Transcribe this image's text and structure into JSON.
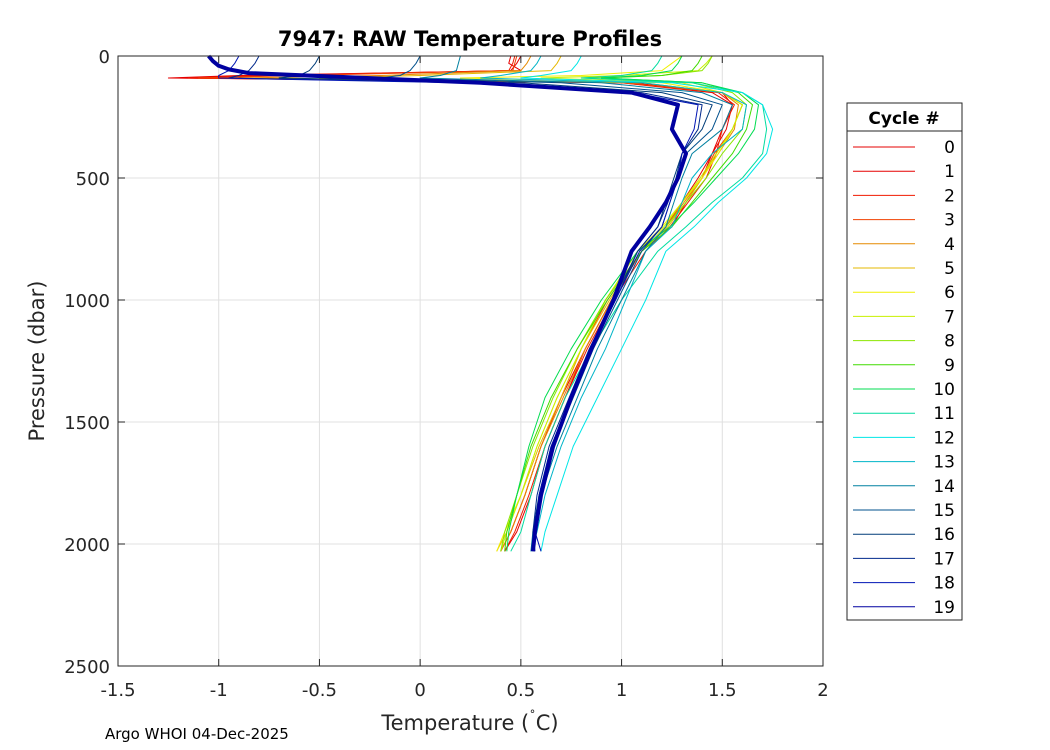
{
  "chart_data": {
    "type": "line",
    "title": "7947: RAW Temperature Profiles",
    "xlabel": "Temperature (",
    "xlabel_degree": "˚",
    "xlabel_unit": "C)",
    "ylabel": "Pressure (dbar)",
    "xlim": [
      -1.5,
      2
    ],
    "ylim": [
      0,
      2500
    ],
    "y_reversed": true,
    "grid": true,
    "x_ticks": [
      -1.5,
      -1,
      -0.5,
      0,
      0.5,
      1,
      1.5,
      2
    ],
    "x_tick_labels": [
      "-1.5",
      "-1",
      "-0.5",
      "0",
      "0.5",
      "1",
      "1.5",
      "2"
    ],
    "y_ticks": [
      0,
      500,
      1000,
      1500,
      2000,
      2500
    ],
    "y_tick_labels": [
      "0",
      "500",
      "1000",
      "1500",
      "2000",
      "2500"
    ],
    "legend": {
      "title": "Cycle #",
      "position": "outside-right",
      "entries": [
        "0",
        "1",
        "2",
        "3",
        "4",
        "5",
        "6",
        "7",
        "8",
        "9",
        "10",
        "11",
        "12",
        "13",
        "14",
        "15",
        "16",
        "17",
        "18",
        "19"
      ]
    },
    "colors": [
      "#e60000",
      "#e60000",
      "#f01a00",
      "#f04000",
      "#e68a00",
      "#e6b800",
      "#f0f000",
      "#c8f000",
      "#8ce600",
      "#40dc00",
      "#00dc50",
      "#00dca0",
      "#00e6e6",
      "#00b4c8",
      "#0080a0",
      "#00508c",
      "#003c78",
      "#00288c",
      "#0014b4",
      "#0000a0"
    ],
    "highlight_series": "19",
    "series": [
      {
        "name": "0",
        "x": [
          0.45,
          0.44,
          0.5,
          -0.9,
          -1.25,
          1.0,
          1.45,
          1.55,
          1.5,
          1.45,
          1.4,
          1.32,
          1.25,
          1.1,
          0.95,
          0.82,
          0.72,
          0.62,
          0.55,
          0.48,
          0.42
        ],
        "y": [
          0,
          30,
          60,
          80,
          90,
          110,
          150,
          200,
          300,
          400,
          500,
          600,
          700,
          800,
          1000,
          1200,
          1400,
          1600,
          1800,
          1950,
          2030
        ]
      },
      {
        "name": "1",
        "x": [
          0.5,
          0.48,
          0.45,
          -0.8,
          -1.2,
          1.05,
          1.5,
          1.55,
          1.52,
          1.45,
          1.38,
          1.3,
          1.22,
          1.1,
          0.95,
          0.82,
          0.7,
          0.6,
          0.52,
          0.45,
          0.4
        ],
        "y": [
          0,
          30,
          60,
          80,
          90,
          110,
          150,
          200,
          300,
          400,
          500,
          600,
          700,
          800,
          1000,
          1200,
          1400,
          1600,
          1800,
          1950,
          2030
        ]
      },
      {
        "name": "2",
        "x": [
          0.47,
          0.46,
          0.44,
          -0.7,
          -1.15,
          1.0,
          1.48,
          1.56,
          1.5,
          1.47,
          1.42,
          1.33,
          1.24,
          1.12,
          0.96,
          0.83,
          0.72,
          0.62,
          0.54,
          0.47,
          0.42
        ],
        "y": [
          0,
          30,
          60,
          80,
          90,
          110,
          150,
          200,
          300,
          400,
          500,
          600,
          700,
          800,
          1000,
          1200,
          1400,
          1600,
          1800,
          1950,
          2030
        ]
      },
      {
        "name": "3",
        "x": [
          0.48,
          0.47,
          0.46,
          -0.6,
          -1.1,
          1.02,
          1.5,
          1.6,
          1.55,
          1.46,
          1.4,
          1.3,
          1.22,
          1.1,
          0.93,
          0.8,
          0.7,
          0.6,
          0.52,
          0.45,
          0.4
        ],
        "y": [
          0,
          30,
          60,
          80,
          90,
          110,
          150,
          200,
          300,
          400,
          500,
          600,
          700,
          800,
          1000,
          1200,
          1400,
          1600,
          1800,
          1950,
          2030
        ]
      },
      {
        "name": "4",
        "x": [
          0.55,
          0.53,
          0.5,
          -0.2,
          -0.9,
          1.1,
          1.5,
          1.58,
          1.56,
          1.48,
          1.4,
          1.31,
          1.22,
          1.1,
          0.95,
          0.82,
          0.71,
          0.6,
          0.52,
          0.45,
          0.4
        ],
        "y": [
          0,
          30,
          60,
          80,
          90,
          110,
          150,
          200,
          300,
          400,
          500,
          600,
          700,
          800,
          1000,
          1200,
          1400,
          1600,
          1800,
          1950,
          2030
        ]
      },
      {
        "name": "5",
        "x": [
          0.7,
          0.68,
          0.65,
          0.0,
          -0.5,
          1.1,
          1.5,
          1.6,
          1.55,
          1.47,
          1.4,
          1.32,
          1.23,
          1.1,
          0.94,
          0.8,
          0.7,
          0.59,
          0.5,
          0.43,
          0.38
        ],
        "y": [
          0,
          30,
          60,
          80,
          90,
          110,
          150,
          200,
          300,
          400,
          500,
          600,
          700,
          800,
          1000,
          1200,
          1400,
          1600,
          1800,
          1950,
          2030
        ]
      },
      {
        "name": "6",
        "x": [
          1.3,
          1.25,
          1.2,
          0.8,
          0.2,
          1.2,
          1.5,
          1.6,
          1.55,
          1.48,
          1.4,
          1.3,
          1.2,
          1.08,
          0.92,
          0.8,
          0.68,
          0.58,
          0.5,
          0.42,
          0.38
        ],
        "y": [
          0,
          30,
          60,
          80,
          90,
          110,
          150,
          200,
          300,
          400,
          500,
          600,
          700,
          800,
          1000,
          1200,
          1400,
          1600,
          1800,
          1950,
          2030
        ]
      },
      {
        "name": "7",
        "x": [
          1.45,
          1.42,
          1.38,
          1.0,
          0.6,
          1.3,
          1.5,
          1.6,
          1.55,
          1.47,
          1.39,
          1.3,
          1.21,
          1.08,
          0.92,
          0.8,
          0.68,
          0.58,
          0.5,
          0.43,
          0.4
        ],
        "y": [
          0,
          30,
          60,
          80,
          90,
          110,
          150,
          200,
          300,
          400,
          500,
          600,
          700,
          800,
          1000,
          1200,
          1400,
          1600,
          1800,
          1950,
          2030
        ]
      },
      {
        "name": "8",
        "x": [
          1.45,
          1.43,
          1.4,
          1.2,
          0.8,
          1.35,
          1.55,
          1.62,
          1.6,
          1.5,
          1.42,
          1.32,
          1.22,
          1.1,
          0.92,
          0.78,
          0.66,
          0.56,
          0.48,
          0.42,
          0.4
        ],
        "y": [
          0,
          30,
          60,
          80,
          90,
          110,
          150,
          200,
          300,
          400,
          500,
          600,
          700,
          800,
          1000,
          1200,
          1400,
          1600,
          1800,
          1950,
          2030
        ]
      },
      {
        "name": "9",
        "x": [
          1.4,
          1.38,
          1.35,
          1.2,
          0.9,
          1.4,
          1.58,
          1.65,
          1.62,
          1.55,
          1.45,
          1.35,
          1.25,
          1.1,
          0.93,
          0.78,
          0.65,
          0.55,
          0.48,
          0.43,
          0.42
        ],
        "y": [
          0,
          30,
          60,
          80,
          90,
          110,
          150,
          200,
          300,
          400,
          500,
          600,
          700,
          800,
          1000,
          1200,
          1400,
          1600,
          1800,
          1950,
          2030
        ]
      },
      {
        "name": "10",
        "x": [
          1.3,
          1.28,
          1.25,
          1.1,
          0.9,
          1.4,
          1.6,
          1.68,
          1.66,
          1.58,
          1.47,
          1.36,
          1.24,
          1.08,
          0.9,
          0.75,
          0.62,
          0.54,
          0.48,
          0.44,
          0.43
        ],
        "y": [
          0,
          30,
          60,
          80,
          90,
          110,
          150,
          200,
          300,
          400,
          500,
          600,
          700,
          800,
          1000,
          1200,
          1400,
          1600,
          1800,
          1950,
          2030
        ]
      },
      {
        "name": "11",
        "x": [
          1.2,
          1.18,
          1.15,
          1.0,
          0.8,
          1.35,
          1.6,
          1.7,
          1.72,
          1.7,
          1.6,
          1.45,
          1.32,
          1.18,
          1.0,
          0.85,
          0.72,
          0.62,
          0.55,
          0.5,
          0.45
        ],
        "y": [
          0,
          30,
          60,
          80,
          90,
          110,
          150,
          200,
          300,
          400,
          500,
          600,
          700,
          800,
          1000,
          1200,
          1400,
          1600,
          1800,
          1950,
          2030
        ]
      },
      {
        "name": "12",
        "x": [
          0.8,
          0.78,
          0.75,
          0.6,
          0.5,
          1.25,
          1.6,
          1.7,
          1.75,
          1.72,
          1.62,
          1.48,
          1.36,
          1.22,
          1.12,
          1.0,
          0.88,
          0.76,
          0.68,
          0.62,
          0.6
        ],
        "y": [
          0,
          30,
          60,
          80,
          90,
          110,
          150,
          200,
          300,
          400,
          500,
          600,
          700,
          800,
          1000,
          1200,
          1400,
          1600,
          1800,
          1950,
          2030
        ]
      },
      {
        "name": "13",
        "x": [
          0.6,
          0.58,
          0.55,
          0.4,
          0.3,
          1.1,
          1.5,
          1.62,
          1.6,
          1.45,
          1.35,
          1.3,
          1.25,
          1.12,
          1.02,
          0.92,
          0.8,
          0.7,
          0.62,
          0.58,
          0.55
        ],
        "y": [
          0,
          30,
          60,
          80,
          90,
          110,
          150,
          200,
          300,
          400,
          500,
          600,
          700,
          800,
          1000,
          1200,
          1400,
          1600,
          1800,
          1950,
          2030
        ]
      },
      {
        "name": "14",
        "x": [
          0.2,
          0.19,
          0.18,
          0.1,
          0.0,
          0.9,
          1.4,
          1.55,
          1.5,
          1.35,
          1.3,
          1.26,
          1.22,
          1.12,
          1.0,
          0.88,
          0.78,
          0.68,
          0.6,
          0.56,
          0.55
        ],
        "y": [
          0,
          30,
          60,
          80,
          90,
          110,
          150,
          200,
          300,
          400,
          500,
          600,
          700,
          800,
          1000,
          1200,
          1400,
          1600,
          1800,
          1950,
          2030
        ]
      },
      {
        "name": "15",
        "x": [
          0.0,
          -0.02,
          -0.05,
          -0.1,
          -0.2,
          0.7,
          1.3,
          1.5,
          1.45,
          1.32,
          1.28,
          1.24,
          1.2,
          1.1,
          0.98,
          0.86,
          0.76,
          0.66,
          0.6,
          0.57,
          0.56
        ],
        "y": [
          0,
          30,
          60,
          80,
          90,
          110,
          150,
          200,
          300,
          400,
          500,
          600,
          700,
          800,
          1000,
          1200,
          1400,
          1600,
          1800,
          1950,
          2030
        ]
      },
      {
        "name": "16",
        "x": [
          -0.5,
          -0.52,
          -0.55,
          -0.6,
          -0.7,
          0.5,
          1.2,
          1.45,
          1.4,
          1.3,
          1.26,
          1.22,
          1.18,
          1.08,
          0.97,
          0.85,
          0.75,
          0.65,
          0.59,
          0.56,
          0.56
        ],
        "y": [
          0,
          30,
          60,
          80,
          90,
          110,
          150,
          200,
          300,
          400,
          500,
          600,
          700,
          800,
          1000,
          1200,
          1400,
          1600,
          1800,
          1950,
          2030
        ]
      },
      {
        "name": "17",
        "x": [
          -0.8,
          -0.82,
          -0.85,
          -0.9,
          -0.95,
          0.3,
          1.1,
          1.4,
          1.38,
          1.3,
          1.27,
          1.23,
          1.18,
          1.08,
          0.96,
          0.84,
          0.74,
          0.64,
          0.58,
          0.56,
          0.57
        ],
        "y": [
          0,
          30,
          60,
          80,
          90,
          110,
          150,
          200,
          300,
          400,
          500,
          600,
          700,
          800,
          1000,
          1200,
          1400,
          1600,
          1800,
          1950,
          2030
        ]
      },
      {
        "name": "18",
        "x": [
          -0.9,
          -0.92,
          -0.95,
          -1.0,
          -1.0,
          0.2,
          1.05,
          1.38,
          1.36,
          1.3,
          1.28,
          1.24,
          1.2,
          1.09,
          0.97,
          0.85,
          0.75,
          0.65,
          0.59,
          0.57,
          0.6
        ],
        "y": [
          0,
          30,
          60,
          80,
          90,
          110,
          150,
          200,
          300,
          400,
          500,
          600,
          700,
          800,
          1000,
          1200,
          1400,
          1600,
          1800,
          1950,
          2030
        ]
      },
      {
        "name": "19",
        "x": [
          -1.05,
          -1.03,
          -1.0,
          -0.95,
          -0.85,
          0.3,
          1.05,
          1.28,
          1.25,
          1.32,
          1.28,
          1.22,
          1.14,
          1.05,
          0.96,
          0.85,
          0.75,
          0.66,
          0.6,
          0.57,
          0.56
        ],
        "y": [
          0,
          20,
          40,
          55,
          70,
          110,
          150,
          200,
          300,
          400,
          500,
          600,
          700,
          800,
          1000,
          1200,
          1400,
          1600,
          1800,
          1950,
          2030
        ]
      }
    ]
  },
  "footer": "Argo WHOI 04-Dec-2025"
}
